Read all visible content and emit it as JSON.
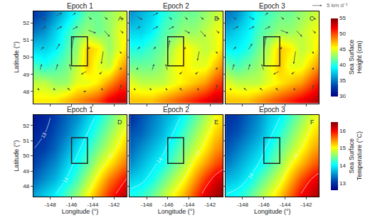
{
  "chart_data": [
    {
      "type": "heatmap",
      "title": "Epoch 1",
      "label": "A",
      "ylabel": "Latitude (°)",
      "tick_labels": "y",
      "grid": false,
      "xlim": [
        -149.6,
        -140.8
      ],
      "ylim": [
        47.3,
        52.7
      ],
      "xticks": [
        -148,
        -146,
        -144,
        -142
      ],
      "yticks": [
        48,
        49,
        50,
        51,
        52
      ],
      "x": [
        -149.5,
        -148.5,
        -147.5,
        -146.5,
        -145.5,
        -144.5,
        -143.5,
        -142.5,
        -141.5,
        -140.5
      ],
      "y": [
        47.5,
        48.5,
        49.5,
        50.5,
        51.5,
        52.5
      ],
      "z": [
        [
          46,
          46,
          46,
          47,
          48,
          49,
          50,
          52,
          53,
          53
        ],
        [
          44,
          44,
          43,
          43,
          45,
          45,
          46,
          48,
          50,
          51
        ],
        [
          41,
          40,
          41,
          42,
          44,
          47,
          45,
          44,
          47,
          49
        ],
        [
          38,
          38,
          39,
          41,
          43,
          47,
          46,
          43,
          45,
          47
        ],
        [
          35,
          36,
          38,
          40,
          42,
          43,
          42,
          43,
          45,
          46
        ],
        [
          33,
          34,
          36,
          38,
          40,
          42,
          42,
          43,
          44,
          45
        ]
      ],
      "zlim": [
        30,
        55
      ],
      "box": {
        "lon": [
          -146,
          -144.5
        ],
        "lat": [
          49.5,
          51.2
        ]
      },
      "vectors": {
        "x": [
          -149,
          -147.5,
          -146,
          -144.5,
          -143,
          -141.5
        ],
        "y": [
          48,
          49.2,
          50.4,
          51.6,
          52.4
        ],
        "u": [
          [
            -1,
            -1,
            -2,
            -2,
            -1,
            1
          ],
          [
            1,
            1,
            -1,
            -3,
            -2,
            1
          ],
          [
            2,
            2,
            1,
            1,
            -1,
            1
          ],
          [
            3,
            3,
            3,
            4,
            3,
            2
          ],
          [
            3,
            3,
            2,
            2,
            2,
            2
          ]
        ],
        "v": [
          [
            1,
            1,
            1,
            0,
            1,
            2
          ],
          [
            2,
            2,
            2,
            -1,
            -1,
            1
          ],
          [
            1,
            2,
            4,
            1,
            -4,
            -1
          ],
          [
            1,
            1,
            1,
            -1,
            -2,
            -1
          ],
          [
            -1,
            1,
            1,
            -1,
            -1,
            -1
          ]
        ]
      }
    },
    {
      "type": "heatmap",
      "title": "Epoch 2",
      "label": "B",
      "tick_labels": false,
      "grid": false,
      "xlim": [
        -149.6,
        -140.8
      ],
      "ylim": [
        47.3,
        52.7
      ],
      "xticks": [
        -148,
        -146,
        -144,
        -142
      ],
      "yticks": [
        48,
        49,
        50,
        51,
        52
      ],
      "x": [
        -149.5,
        -148.5,
        -147.5,
        -146.5,
        -145.5,
        -144.5,
        -143.5,
        -142.5,
        -141.5,
        -140.5
      ],
      "y": [
        47.5,
        48.5,
        49.5,
        50.5,
        51.5,
        52.5
      ],
      "z": [
        [
          47,
          47,
          47,
          48,
          49,
          50,
          51,
          52,
          53,
          53
        ],
        [
          45,
          44,
          44,
          44,
          45,
          46,
          47,
          48,
          50,
          51
        ],
        [
          42,
          42,
          42,
          43,
          45,
          46,
          45,
          45,
          47,
          49
        ],
        [
          40,
          40,
          41,
          42,
          44,
          46,
          45,
          44,
          45,
          47
        ],
        [
          38,
          38,
          39,
          41,
          42,
          43,
          43,
          44,
          45,
          46
        ],
        [
          36,
          37,
          38,
          40,
          41,
          42,
          42,
          43,
          44,
          45
        ]
      ],
      "zlim": [
        30,
        55
      ],
      "box": {
        "lon": [
          -146,
          -144.5
        ],
        "lat": [
          49.5,
          51.2
        ]
      },
      "vectors": {
        "x": [
          -149,
          -147.5,
          -146,
          -144.5,
          -143,
          -141.5
        ],
        "y": [
          48,
          49.2,
          50.4,
          51.6,
          52.4
        ],
        "u": [
          [
            -1,
            -1,
            -1,
            -2,
            -1,
            1
          ],
          [
            1,
            1,
            -1,
            -2,
            -2,
            1
          ],
          [
            2,
            2,
            1,
            1,
            -1,
            1
          ],
          [
            2,
            3,
            3,
            3,
            3,
            2
          ],
          [
            3,
            3,
            2,
            2,
            2,
            2
          ]
        ],
        "v": [
          [
            1,
            1,
            1,
            1,
            1,
            2
          ],
          [
            1,
            2,
            2,
            -1,
            -1,
            1
          ],
          [
            1,
            1,
            3,
            1,
            -3,
            -1
          ],
          [
            1,
            1,
            1,
            -1,
            -2,
            -1
          ],
          [
            -1,
            1,
            -1,
            -1,
            -1,
            -1
          ]
        ]
      }
    },
    {
      "type": "heatmap",
      "title": "Epoch 3",
      "label": "C",
      "tick_labels": false,
      "grid": false,
      "xlim": [
        -149.6,
        -140.8
      ],
      "ylim": [
        47.3,
        52.7
      ],
      "xticks": [
        -148,
        -146,
        -144,
        -142
      ],
      "yticks": [
        48,
        49,
        50,
        51,
        52
      ],
      "x": [
        -149.5,
        -148.5,
        -147.5,
        -146.5,
        -145.5,
        -144.5,
        -143.5,
        -142.5,
        -141.5,
        -140.5
      ],
      "y": [
        47.5,
        48.5,
        49.5,
        50.5,
        51.5,
        52.5
      ],
      "z": [
        [
          47,
          47,
          47,
          48,
          49,
          50,
          51,
          52,
          53,
          54
        ],
        [
          45,
          44,
          44,
          44,
          45,
          46,
          47,
          48,
          50,
          52
        ],
        [
          42,
          41,
          42,
          43,
          45,
          47,
          45,
          45,
          47,
          49
        ],
        [
          39,
          39,
          40,
          42,
          44,
          47,
          46,
          44,
          45,
          47
        ],
        [
          37,
          38,
          39,
          41,
          42,
          43,
          43,
          44,
          45,
          46
        ],
        [
          35,
          36,
          38,
          40,
          41,
          42,
          42,
          43,
          44,
          45
        ]
      ],
      "zlim": [
        30,
        55
      ],
      "colorbar": {
        "title": [
          "Sea Surface",
          "Height (cm)"
        ],
        "ticks": [
          30,
          35,
          40,
          45,
          50,
          55
        ]
      },
      "vector_scale": {
        "value": 5,
        "label": "5 km d⁻¹"
      },
      "box": {
        "lon": [
          -146,
          -144.5
        ],
        "lat": [
          49.5,
          51.2
        ]
      },
      "vectors": {
        "x": [
          -149,
          -147.5,
          -146,
          -144.5,
          -143,
          -141.5
        ],
        "y": [
          48,
          49.2,
          50.4,
          51.6,
          52.4
        ],
        "u": [
          [
            -1,
            -2,
            -2,
            -2,
            -1,
            1
          ],
          [
            1,
            1,
            -1,
            -3,
            -2,
            1
          ],
          [
            2,
            2,
            1,
            1,
            -1,
            1
          ],
          [
            3,
            3,
            3,
            4,
            3,
            2
          ],
          [
            2,
            3,
            2,
            2,
            2,
            2
          ]
        ],
        "v": [
          [
            1,
            1,
            1,
            1,
            1,
            2
          ],
          [
            2,
            2,
            2,
            -1,
            -1,
            1
          ],
          [
            1,
            2,
            4,
            1,
            -4,
            -1
          ],
          [
            1,
            1,
            1,
            -1,
            -2,
            -1
          ],
          [
            -1,
            -1,
            1,
            -1,
            -1,
            -1
          ]
        ]
      }
    },
    {
      "type": "heatmap",
      "title": "Epoch 1",
      "label": "D",
      "xlabel": "Longitude (°)",
      "ylabel": "Latitude (°)",
      "tick_labels": true,
      "grid": false,
      "xlim": [
        -149.6,
        -140.8
      ],
      "ylim": [
        47.3,
        52.7
      ],
      "xticks": [
        -148,
        -146,
        -144,
        -142
      ],
      "yticks": [
        48,
        49,
        50,
        51,
        52
      ],
      "x": [
        -149.5,
        -148.5,
        -147.5,
        -146.5,
        -145.5,
        -144.5,
        -143.5,
        -142.5,
        -141.5,
        -140.5
      ],
      "y": [
        47.5,
        48.5,
        49.5,
        50.5,
        51.5,
        52.5
      ],
      "z": [
        [
          13.6,
          13.8,
          14.0,
          14.3,
          14.6,
          15.0,
          15.4,
          15.8,
          16.1,
          16.4
        ],
        [
          13.3,
          13.5,
          13.7,
          14.0,
          14.3,
          14.7,
          15.1,
          15.5,
          15.8,
          16.1
        ],
        [
          13.1,
          13.3,
          13.5,
          13.8,
          14.1,
          14.4,
          14.8,
          15.1,
          15.4,
          15.7
        ],
        [
          13.0,
          13.1,
          13.3,
          13.6,
          13.9,
          14.2,
          14.5,
          14.8,
          15.1,
          15.4
        ],
        [
          12.9,
          13.0,
          13.2,
          13.4,
          13.7,
          14.0,
          14.3,
          14.6,
          14.9,
          15.2
        ],
        [
          12.8,
          12.9,
          13.1,
          13.3,
          13.5,
          13.8,
          14.1,
          14.4,
          14.7,
          15.0
        ]
      ],
      "zlim": [
        12.6,
        16.5
      ],
      "contours": [
        13,
        14,
        15,
        16
      ],
      "box": {
        "lon": [
          -146,
          -144.5
        ],
        "lat": [
          49.5,
          51.2
        ]
      }
    },
    {
      "type": "heatmap",
      "title": "Epoch 2",
      "label": "E",
      "xlabel": "Longitude (°)",
      "tick_labels": "x",
      "grid": false,
      "xlim": [
        -149.6,
        -140.8
      ],
      "ylim": [
        47.3,
        52.7
      ],
      "xticks": [
        -148,
        -146,
        -144,
        -142
      ],
      "yticks": [
        48,
        49,
        50,
        51,
        52
      ],
      "x": [
        -149.5,
        -148.5,
        -147.5,
        -146.5,
        -145.5,
        -144.5,
        -143.5,
        -142.5,
        -141.5,
        -140.5
      ],
      "y": [
        47.5,
        48.5,
        49.5,
        50.5,
        51.5,
        52.5
      ],
      "z": [
        [
          14.1,
          14.2,
          14.4,
          14.7,
          15.0,
          15.3,
          15.7,
          16.1,
          16.3,
          16.5
        ],
        [
          13.8,
          13.9,
          14.1,
          14.4,
          14.7,
          15.0,
          15.4,
          15.8,
          16.1,
          16.3
        ],
        [
          13.5,
          13.7,
          13.9,
          14.1,
          14.4,
          14.7,
          15.1,
          15.4,
          15.7,
          15.9
        ],
        [
          13.3,
          13.5,
          13.7,
          13.9,
          14.2,
          14.5,
          14.8,
          15.1,
          15.4,
          15.6
        ],
        [
          13.2,
          13.3,
          13.5,
          13.7,
          14.0,
          14.3,
          14.6,
          14.9,
          15.2,
          15.4
        ],
        [
          13.0,
          13.2,
          13.4,
          13.6,
          13.8,
          14.1,
          14.4,
          14.7,
          15.0,
          15.2
        ]
      ],
      "zlim": [
        12.6,
        16.5
      ],
      "contours": [
        13,
        14,
        15,
        16
      ],
      "box": {
        "lon": [
          -146,
          -144.5
        ],
        "lat": [
          49.5,
          51.2
        ]
      }
    },
    {
      "type": "heatmap",
      "title": "Epoch 3",
      "label": "F",
      "xlabel": "Longitude (°)",
      "tick_labels": "x",
      "grid": false,
      "xlim": [
        -149.6,
        -140.8
      ],
      "ylim": [
        47.3,
        52.7
      ],
      "xticks": [
        -148,
        -146,
        -144,
        -142
      ],
      "yticks": [
        48,
        49,
        50,
        51,
        52
      ],
      "x": [
        -149.5,
        -148.5,
        -147.5,
        -146.5,
        -145.5,
        -144.5,
        -143.5,
        -142.5,
        -141.5,
        -140.5
      ],
      "y": [
        47.5,
        48.5,
        49.5,
        50.5,
        51.5,
        52.5
      ],
      "z": [
        [
          14.0,
          14.1,
          14.3,
          14.6,
          14.9,
          15.2,
          15.6,
          16.0,
          16.2,
          16.4
        ],
        [
          13.7,
          13.8,
          14.0,
          14.3,
          14.6,
          14.9,
          15.3,
          15.7,
          16.0,
          16.2
        ],
        [
          13.4,
          13.6,
          13.8,
          14.0,
          14.3,
          14.6,
          15.0,
          15.3,
          15.6,
          15.8
        ],
        [
          13.2,
          13.4,
          13.6,
          13.8,
          14.1,
          14.4,
          14.7,
          15.0,
          15.3,
          15.5
        ],
        [
          13.1,
          13.2,
          13.4,
          13.6,
          13.9,
          14.2,
          14.5,
          14.8,
          15.1,
          15.3
        ],
        [
          13.0,
          13.1,
          13.3,
          13.5,
          13.8,
          14.0,
          14.3,
          14.6,
          14.9,
          15.1
        ]
      ],
      "zlim": [
        12.6,
        16.5
      ],
      "colorbar": {
        "title": [
          "Sea Surface",
          "Temperature (°C)"
        ],
        "ticks": [
          13,
          14,
          15,
          16
        ]
      },
      "contours": [
        13,
        14,
        15,
        16
      ],
      "box": {
        "lon": [
          -146,
          -144.5
        ],
        "lat": [
          49.5,
          51.2
        ]
      }
    }
  ]
}
